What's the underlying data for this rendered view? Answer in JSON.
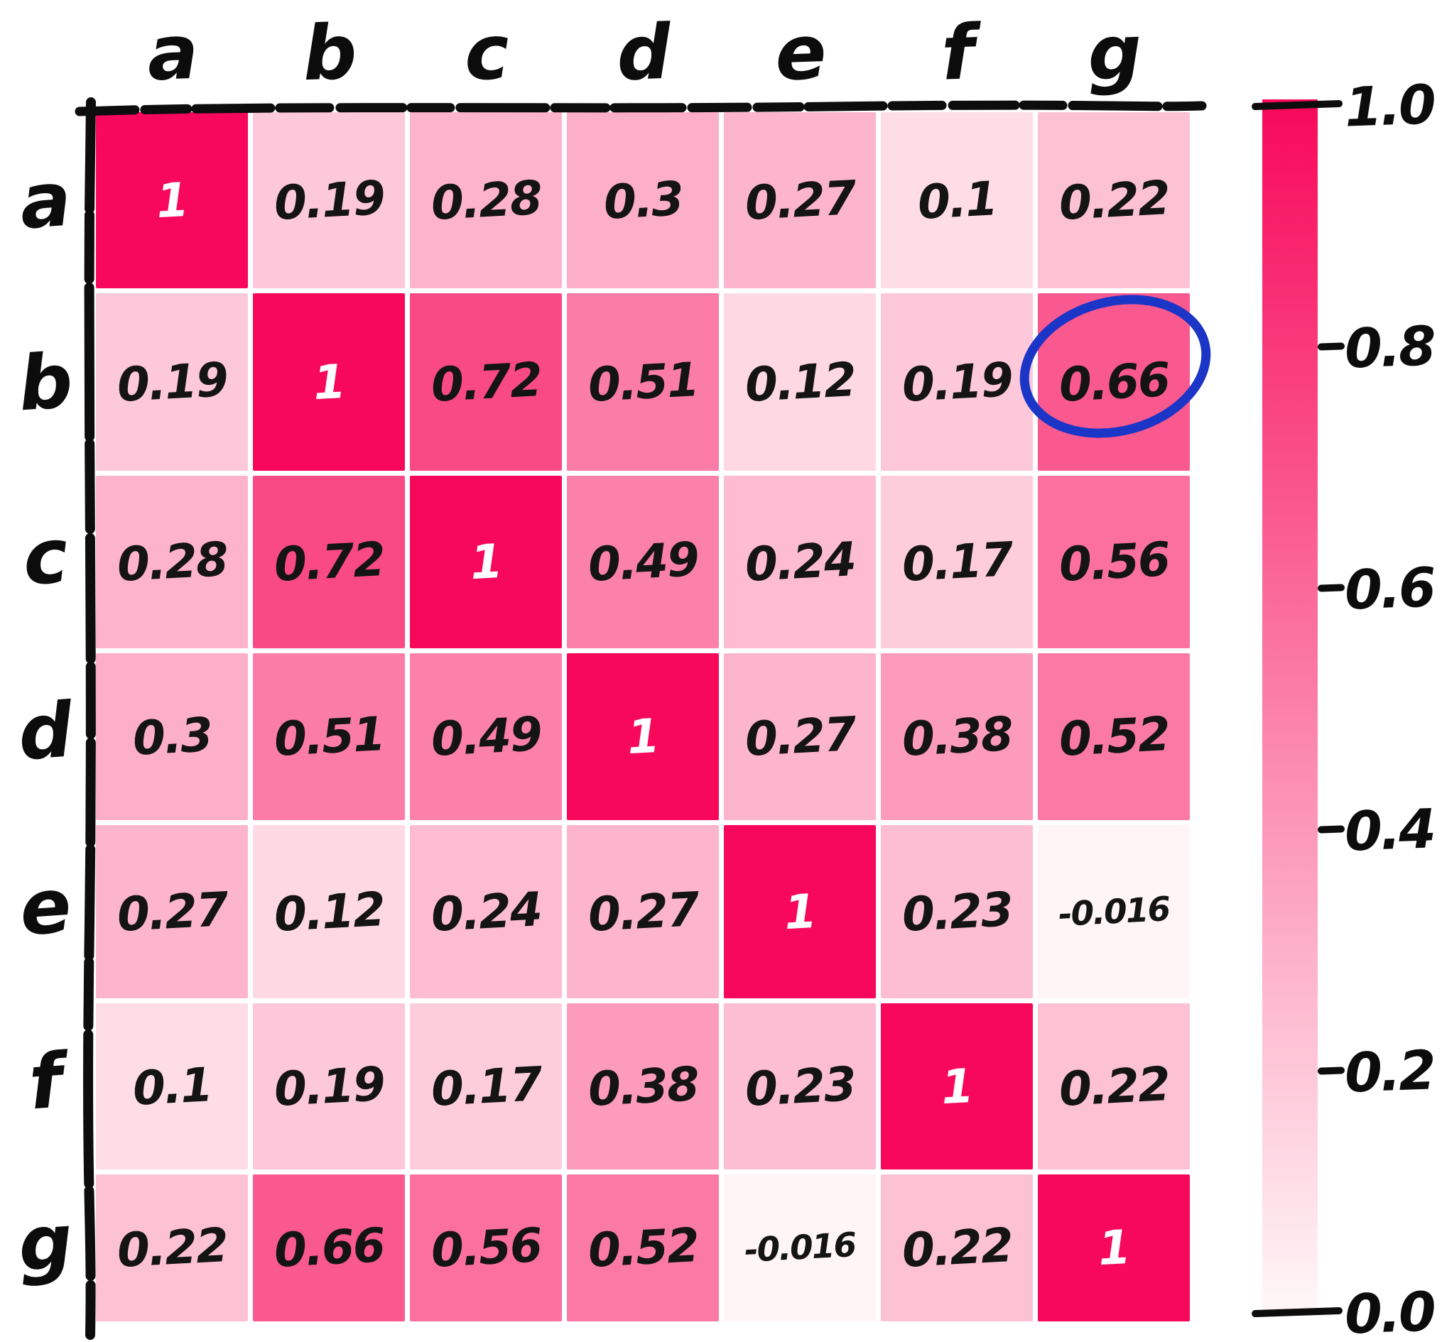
{
  "chart_data": {
    "type": "heatmap",
    "title": "",
    "xlabel": "",
    "ylabel": "",
    "categories_x": [
      "a",
      "b",
      "c",
      "d",
      "e",
      "f",
      "g"
    ],
    "categories_y": [
      "a",
      "b",
      "c",
      "d",
      "e",
      "f",
      "g"
    ],
    "values": [
      [
        1,
        0.19,
        0.28,
        0.3,
        0.27,
        0.1,
        0.22
      ],
      [
        0.19,
        1,
        0.72,
        0.51,
        0.12,
        0.19,
        0.66
      ],
      [
        0.28,
        0.72,
        1,
        0.49,
        0.24,
        0.17,
        0.56
      ],
      [
        0.3,
        0.51,
        0.49,
        1,
        0.27,
        0.38,
        0.52
      ],
      [
        0.27,
        0.12,
        0.24,
        0.27,
        1,
        0.23,
        -0.016
      ],
      [
        0.1,
        0.19,
        0.17,
        0.38,
        0.23,
        1,
        0.22
      ],
      [
        0.22,
        0.66,
        0.56,
        0.52,
        -0.016,
        0.22,
        1
      ]
    ],
    "cell_labels": [
      [
        "1",
        "0.19",
        "0.28",
        "0.3",
        "0.27",
        "0.1",
        "0.22"
      ],
      [
        "0.19",
        "1",
        "0.72",
        "0.51",
        "0.12",
        "0.19",
        "0.66"
      ],
      [
        "0.28",
        "0.72",
        "1",
        "0.49",
        "0.24",
        "0.17",
        "0.56"
      ],
      [
        "0.3",
        "0.51",
        "0.49",
        "1",
        "0.27",
        "0.38",
        "0.52"
      ],
      [
        "0.27",
        "0.12",
        "0.24",
        "0.27",
        "1",
        "0.23",
        "-0.016"
      ],
      [
        "0.1",
        "0.19",
        "0.17",
        "0.38",
        "0.23",
        "1",
        "0.22"
      ],
      [
        "0.22",
        "0.66",
        "0.56",
        "0.52",
        "-0.016",
        "0.22",
        "1"
      ]
    ],
    "colorbar": {
      "tick_labels": [
        "1.0",
        "0.8",
        "0.6",
        "0.4",
        "0.2",
        "0.0"
      ],
      "min": 0.0,
      "max": 1.0,
      "position": "right"
    },
    "annotation": {
      "shape": "hand-drawn-ellipse",
      "row": "b",
      "col": "g",
      "circled_value": "0.66"
    },
    "grid": false,
    "legend": "none",
    "style": "hand-drawn"
  },
  "colors": {
    "cmap_high": "#f7085a",
    "cmap_low": "#fff5f7",
    "axis_stroke": "#0d0d0d",
    "annotation_stroke": "#1b35c7",
    "value_text": "#141414",
    "diagonal_value_text": "#ffffff"
  }
}
